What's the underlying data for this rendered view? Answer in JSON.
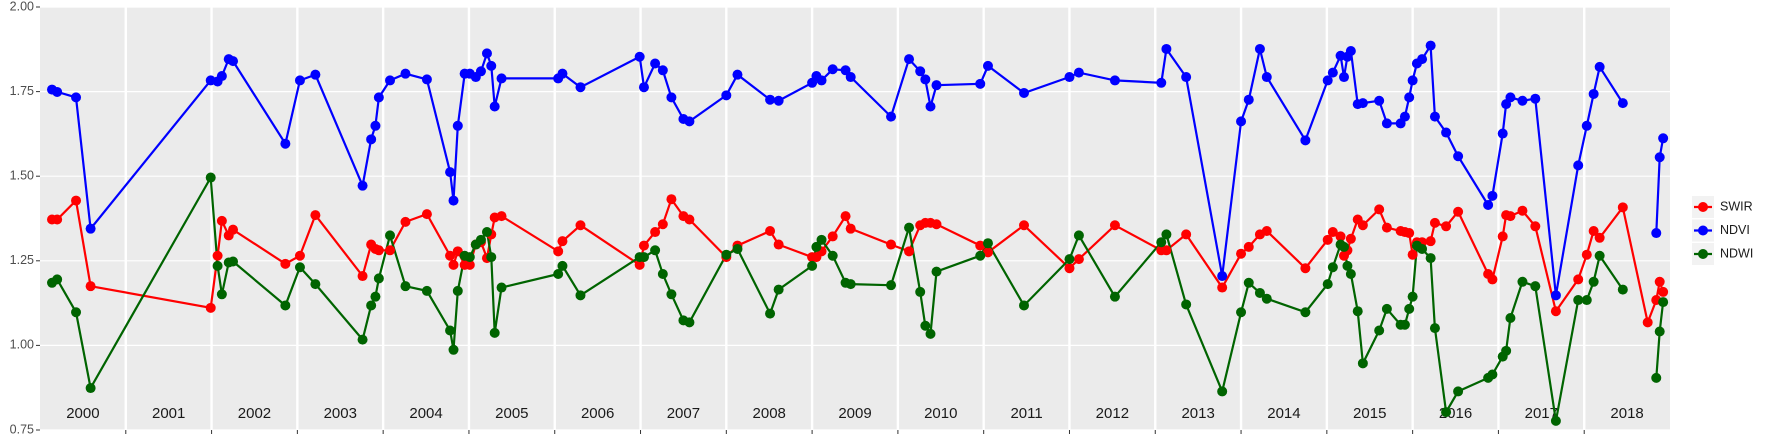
{
  "chart_data": {
    "type": "line",
    "x": [
      2000.14,
      2000.2,
      2000.42,
      2000.59,
      2001.99,
      2002.07,
      2002.12,
      2002.2,
      2002.25,
      2002.86,
      2003.03,
      2003.21,
      2003.76,
      2003.86,
      2003.91,
      2003.95,
      2004.08,
      2004.26,
      2004.51,
      2004.78,
      2004.82,
      2004.87,
      2004.95,
      2005.01,
      2005.08,
      2005.14,
      2005.21,
      2005.26,
      2005.3,
      2005.38,
      2006.04,
      2006.09,
      2006.3,
      2006.99,
      2007.04,
      2007.17,
      2007.26,
      2007.36,
      2007.5,
      2007.57,
      2008.0,
      2008.13,
      2008.51,
      2008.61,
      2009.0,
      2009.05,
      2009.11,
      2009.24,
      2009.39,
      2009.45,
      2009.92,
      2010.13,
      2010.26,
      2010.32,
      2010.38,
      2010.45,
      2010.96,
      2011.05,
      2011.47,
      2012.0,
      2012.11,
      2012.53,
      2013.07,
      2013.13,
      2013.36,
      2013.78,
      2014.0,
      2014.09,
      2014.22,
      2014.3,
      2014.75,
      2015.01,
      2015.07,
      2015.16,
      2015.2,
      2015.24,
      2015.28,
      2015.36,
      2015.42,
      2015.61,
      2015.7,
      2015.86,
      2015.91,
      2015.96,
      2016.0,
      2016.05,
      2016.11,
      2016.21,
      2016.26,
      2016.39,
      2016.53,
      2016.88,
      2016.93,
      2017.05,
      2017.09,
      2017.14,
      2017.28,
      2017.43,
      2017.67,
      2017.93,
      2018.03,
      2018.11,
      2018.18,
      2018.45,
      2018.74,
      2018.84,
      2018.88,
      2018.92
    ],
    "series": [
      {
        "name": "SWIR",
        "color": "#ff0000",
        "values": [
          1.372,
          1.372,
          1.428,
          1.175,
          1.111,
          1.265,
          1.368,
          1.325,
          1.342,
          1.241,
          1.265,
          1.385,
          1.205,
          1.298,
          1.285,
          1.281,
          1.281,
          1.365,
          1.388,
          1.265,
          1.238,
          1.278,
          1.238,
          1.238,
          1.298,
          1.305,
          1.258,
          1.328,
          1.378,
          1.382,
          1.278,
          1.308,
          1.355,
          1.238,
          1.295,
          1.335,
          1.358,
          1.432,
          1.382,
          1.372,
          1.261,
          1.295,
          1.338,
          1.298,
          1.261,
          1.261,
          1.278,
          1.322,
          1.382,
          1.345,
          1.298,
          1.278,
          1.355,
          1.362,
          1.362,
          1.358,
          1.295,
          1.275,
          1.355,
          1.228,
          1.255,
          1.355,
          1.281,
          1.281,
          1.328,
          1.171,
          1.271,
          1.291,
          1.328,
          1.338,
          1.228,
          1.312,
          1.335,
          1.322,
          1.265,
          1.281,
          1.315,
          1.372,
          1.355,
          1.402,
          1.348,
          1.338,
          1.335,
          1.332,
          1.268,
          1.305,
          1.305,
          1.308,
          1.362,
          1.352,
          1.395,
          1.211,
          1.195,
          1.322,
          1.385,
          1.382,
          1.398,
          1.352,
          1.101,
          1.195,
          1.268,
          1.338,
          1.318,
          1.408,
          1.068,
          1.134,
          1.188,
          1.158
        ]
      },
      {
        "name": "NDVI",
        "color": "#0000ff",
        "values": [
          1.756,
          1.749,
          1.733,
          1.345,
          1.783,
          1.78,
          1.796,
          1.846,
          1.84,
          1.596,
          1.783,
          1.8,
          1.472,
          1.609,
          1.649,
          1.733,
          1.783,
          1.803,
          1.786,
          1.512,
          1.428,
          1.649,
          1.803,
          1.803,
          1.793,
          1.81,
          1.863,
          1.826,
          1.706,
          1.789,
          1.789,
          1.803,
          1.763,
          1.853,
          1.763,
          1.833,
          1.813,
          1.733,
          1.669,
          1.662,
          1.739,
          1.8,
          1.726,
          1.723,
          1.776,
          1.796,
          1.783,
          1.816,
          1.813,
          1.793,
          1.676,
          1.846,
          1.81,
          1.786,
          1.706,
          1.769,
          1.773,
          1.826,
          1.746,
          1.793,
          1.806,
          1.783,
          1.776,
          1.876,
          1.793,
          1.205,
          1.662,
          1.726,
          1.876,
          1.793,
          1.606,
          1.783,
          1.806,
          1.856,
          1.793,
          1.853,
          1.87,
          1.713,
          1.716,
          1.723,
          1.656,
          1.656,
          1.676,
          1.733,
          1.783,
          1.833,
          1.846,
          1.886,
          1.676,
          1.629,
          1.559,
          1.415,
          1.442,
          1.626,
          1.713,
          1.733,
          1.723,
          1.729,
          1.148,
          1.532,
          1.649,
          1.743,
          1.823,
          1.716,
          null,
          1.332,
          1.556,
          1.612
        ]
      },
      {
        "name": "NDWI",
        "color": "#006400",
        "values": [
          1.185,
          1.195,
          1.098,
          0.874,
          1.496,
          1.235,
          1.151,
          1.245,
          1.248,
          1.118,
          1.231,
          1.181,
          1.017,
          1.118,
          1.144,
          1.198,
          1.325,
          1.175,
          1.161,
          1.044,
          0.987,
          1.161,
          1.265,
          1.261,
          1.298,
          1.312,
          1.335,
          1.261,
          1.037,
          1.171,
          1.211,
          1.235,
          1.148,
          1.261,
          1.261,
          1.281,
          1.211,
          1.151,
          1.074,
          1.068,
          1.268,
          1.285,
          1.094,
          1.165,
          1.235,
          1.291,
          1.312,
          1.265,
          1.185,
          1.181,
          1.178,
          1.348,
          1.158,
          1.058,
          1.034,
          1.218,
          1.265,
          1.302,
          1.118,
          1.255,
          1.325,
          1.144,
          1.305,
          1.328,
          1.121,
          0.864,
          1.098,
          1.185,
          1.155,
          1.138,
          1.098,
          1.181,
          1.231,
          1.298,
          1.291,
          1.235,
          1.211,
          1.101,
          0.947,
          1.044,
          1.108,
          1.061,
          1.061,
          1.108,
          1.144,
          1.295,
          1.285,
          1.258,
          1.051,
          0.803,
          0.864,
          0.904,
          0.914,
          0.967,
          0.984,
          1.081,
          1.188,
          1.175,
          0.777,
          1.134,
          1.134,
          1.188,
          1.265,
          1.165,
          null,
          0.904,
          1.041,
          1.128
        ]
      }
    ],
    "xlim": [
      2000,
      2019
    ],
    "xticks": [
      2001,
      2002,
      2003,
      2004,
      2005,
      2006,
      2007,
      2008,
      2009,
      2010,
      2011,
      2012,
      2013,
      2014,
      2015,
      2016,
      2017,
      2018
    ],
    "year_labels": [
      {
        "value": 2000.5,
        "label": "2000"
      },
      {
        "value": 2001.5,
        "label": "2001"
      },
      {
        "value": 2002.5,
        "label": "2002"
      },
      {
        "value": 2003.5,
        "label": "2003"
      },
      {
        "value": 2004.5,
        "label": "2004"
      },
      {
        "value": 2005.5,
        "label": "2005"
      },
      {
        "value": 2006.5,
        "label": "2006"
      },
      {
        "value": 2007.5,
        "label": "2007"
      },
      {
        "value": 2008.5,
        "label": "2008"
      },
      {
        "value": 2009.5,
        "label": "2009"
      },
      {
        "value": 2010.5,
        "label": "2010"
      },
      {
        "value": 2011.5,
        "label": "2011"
      },
      {
        "value": 2012.5,
        "label": "2012"
      },
      {
        "value": 2013.5,
        "label": "2013"
      },
      {
        "value": 2014.5,
        "label": "2014"
      },
      {
        "value": 2015.5,
        "label": "2015"
      },
      {
        "value": 2016.5,
        "label": "2016"
      },
      {
        "value": 2017.5,
        "label": "2017"
      },
      {
        "value": 2018.5,
        "label": "2018"
      }
    ],
    "ylim": [
      0.75,
      2.0
    ],
    "yticks": [
      0.75,
      {
        "value": 1.0,
        "label": "1.00"
      },
      1.25,
      {
        "value": 1.5,
        "label": "1.50"
      },
      1.75,
      {
        "value": 2.0,
        "label": "2.00"
      }
    ],
    "grid": true,
    "legend": "right"
  }
}
